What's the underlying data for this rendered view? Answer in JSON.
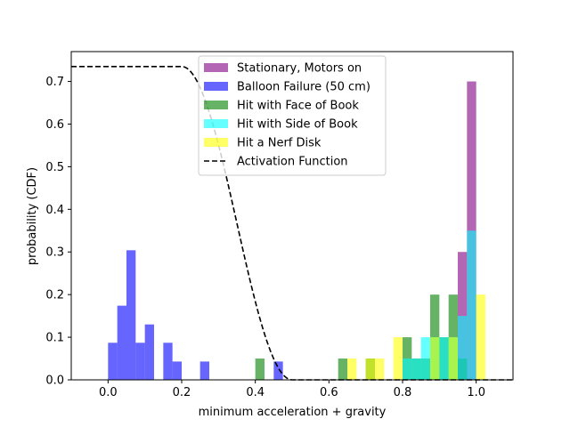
{
  "chart_data": {
    "type": "histogram",
    "xlabel": "minimum acceleration + gravity",
    "ylabel": "probability (CDF)",
    "xlim": [
      -0.1,
      1.1
    ],
    "ylim": [
      0,
      0.77
    ],
    "xticks": [
      "0.0",
      "0.2",
      "0.4",
      "0.6",
      "0.8",
      "1.0"
    ],
    "xtick_values": [
      0,
      0.2,
      0.4,
      0.6,
      0.8,
      1.0
    ],
    "yticks": [
      "0.0",
      "0.1",
      "0.2",
      "0.3",
      "0.4",
      "0.5",
      "0.6",
      "0.7"
    ],
    "ytick_values": [
      0,
      0.1,
      0.2,
      0.3,
      0.4,
      0.5,
      0.6,
      0.7
    ],
    "legend_position": "top-center",
    "grid": false,
    "bin_width": 0.025,
    "series": [
      {
        "name": "Stationary, Motors on",
        "color": "#800080",
        "alpha": 0.6,
        "bins": [
          {
            "x": 0.95,
            "value": 0.3
          },
          {
            "x": 0.975,
            "value": 0.7
          }
        ]
      },
      {
        "name": "Balloon Failure (50 cm)",
        "color": "#0000ff",
        "alpha": 0.6,
        "bins": [
          {
            "x": 0.0,
            "value": 0.087
          },
          {
            "x": 0.025,
            "value": 0.174
          },
          {
            "x": 0.05,
            "value": 0.304
          },
          {
            "x": 0.075,
            "value": 0.087
          },
          {
            "x": 0.1,
            "value": 0.13
          },
          {
            "x": 0.15,
            "value": 0.087
          },
          {
            "x": 0.175,
            "value": 0.043
          },
          {
            "x": 0.25,
            "value": 0.043
          },
          {
            "x": 0.45,
            "value": 0.043
          }
        ]
      },
      {
        "name": "Hit with Face of Book",
        "color": "#008000",
        "alpha": 0.6,
        "bins": [
          {
            "x": 0.4,
            "value": 0.05
          },
          {
            "x": 0.625,
            "value": 0.05
          },
          {
            "x": 0.7,
            "value": 0.05
          },
          {
            "x": 0.8,
            "value": 0.1
          },
          {
            "x": 0.825,
            "value": 0.05
          },
          {
            "x": 0.85,
            "value": 0.05
          },
          {
            "x": 0.875,
            "value": 0.2
          },
          {
            "x": 0.9,
            "value": 0.1
          },
          {
            "x": 0.925,
            "value": 0.2
          },
          {
            "x": 0.95,
            "value": 0.05
          }
        ]
      },
      {
        "name": "Hit with Side of Book",
        "color": "#00ffff",
        "alpha": 0.6,
        "bins": [
          {
            "x": 0.8,
            "value": 0.05
          },
          {
            "x": 0.825,
            "value": 0.05
          },
          {
            "x": 0.85,
            "value": 0.1
          },
          {
            "x": 0.875,
            "value": 0.1
          },
          {
            "x": 0.9,
            "value": 0.1
          },
          {
            "x": 0.925,
            "value": 0.1
          },
          {
            "x": 0.95,
            "value": 0.15
          },
          {
            "x": 0.975,
            "value": 0.35
          }
        ]
      },
      {
        "name": "Hit a Nerf Disk",
        "color": "#ffff00",
        "alpha": 0.6,
        "bins": [
          {
            "x": 0.65,
            "value": 0.05
          },
          {
            "x": 0.7,
            "value": 0.05
          },
          {
            "x": 0.725,
            "value": 0.05
          },
          {
            "x": 0.775,
            "value": 0.1
          },
          {
            "x": 0.875,
            "value": 0.1
          },
          {
            "x": 0.925,
            "value": 0.1
          },
          {
            "x": 1.0,
            "value": 0.2
          }
        ]
      }
    ],
    "line_series": {
      "name": "Activation Function",
      "color": "#000000",
      "dash": "dashed",
      "x_range": [
        -0.1,
        1.1
      ],
      "plateau_value": 0.735,
      "plateau_until_x": 0.2,
      "falloff_end_x": 0.5
    }
  }
}
